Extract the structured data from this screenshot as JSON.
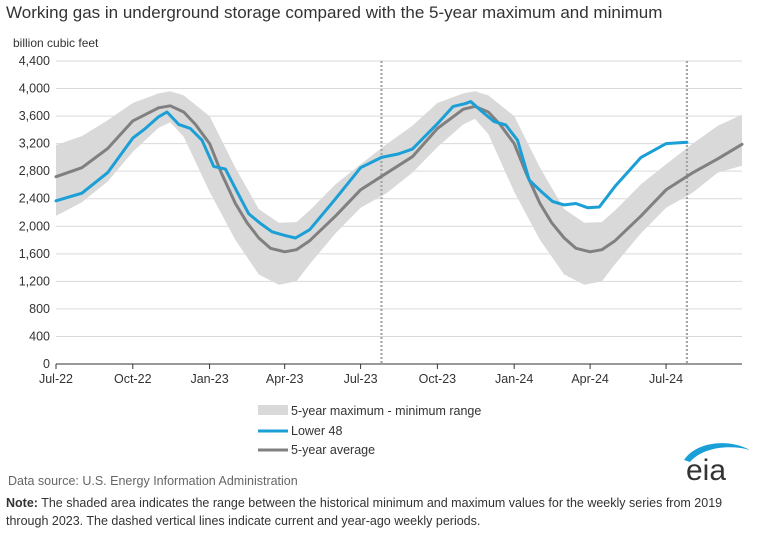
{
  "chart_data": {
    "type": "line",
    "title": "Working gas in underground  storage compared with the 5-year maximum and minimum",
    "ylabel": "billion cubic feet",
    "xlabel": "",
    "ylim": [
      0,
      4400
    ],
    "yticks": [
      0,
      400,
      800,
      1200,
      1600,
      2000,
      2400,
      2800,
      3200,
      3600,
      4000,
      4400
    ],
    "ytick_labels": [
      "0",
      "400",
      "800",
      "1,200",
      "1,600",
      "2,000",
      "2,400",
      "2,800",
      "3,200",
      "3,600",
      "4,000",
      "4,400"
    ],
    "xlim": [
      "2022-07-01",
      "2024-09-30"
    ],
    "xticks": [
      "2022-07-01",
      "2022-10-01",
      "2023-01-01",
      "2023-04-01",
      "2023-07-01",
      "2023-10-01",
      "2024-01-01",
      "2024-04-01",
      "2024-07-01"
    ],
    "xtick_labels": [
      "Jul-22",
      "Oct-22",
      "Jan-23",
      "Apr-23",
      "Jul-23",
      "Oct-23",
      "Jan-24",
      "Apr-24",
      "Jul-24"
    ],
    "grid": "horizontal",
    "legend_position": "bottom-center",
    "current_week_lines": [
      "2023-07-26",
      "2024-07-26"
    ],
    "series": [
      {
        "name": "5-year maximum - minimum range",
        "type": "band",
        "color": "#d9d9d9",
        "x": [
          "2022-07-01",
          "2022-08-01",
          "2022-09-01",
          "2022-10-01",
          "2022-11-01",
          "2022-11-15",
          "2022-12-01",
          "2023-01-01",
          "2023-02-01",
          "2023-03-01",
          "2023-03-25",
          "2023-04-15",
          "2023-05-01",
          "2023-06-01",
          "2023-07-01",
          "2023-08-01",
          "2023-09-01",
          "2023-10-01",
          "2023-11-01",
          "2023-11-15",
          "2023-12-01",
          "2024-01-01",
          "2024-02-01",
          "2024-03-01",
          "2024-03-25",
          "2024-04-15",
          "2024-05-01",
          "2024-06-01",
          "2024-07-01",
          "2024-08-01",
          "2024-09-01",
          "2024-09-30"
        ],
        "upper": [
          3180,
          3310,
          3540,
          3790,
          3930,
          3960,
          3900,
          3600,
          2850,
          2250,
          2050,
          2060,
          2230,
          2610,
          2900,
          3190,
          3460,
          3790,
          3930,
          3960,
          3900,
          3600,
          2850,
          2250,
          2050,
          2060,
          2230,
          2610,
          2900,
          3190,
          3460,
          3620
        ],
        "lower": [
          2150,
          2350,
          2650,
          3080,
          3430,
          3510,
          3300,
          2500,
          1800,
          1300,
          1150,
          1200,
          1450,
          1900,
          2270,
          2480,
          2780,
          3150,
          3480,
          3560,
          3340,
          2500,
          1800,
          1300,
          1150,
          1200,
          1450,
          1900,
          2270,
          2480,
          2780,
          2880
        ]
      },
      {
        "name": "Lower 48",
        "color": "#1a9fd6",
        "x": [
          "2022-07-01",
          "2022-08-01",
          "2022-09-01",
          "2022-10-01",
          "2022-10-15",
          "2022-11-01",
          "2022-11-11",
          "2022-11-25",
          "2022-12-09",
          "2022-12-23",
          "2023-01-06",
          "2023-01-20",
          "2023-02-03",
          "2023-02-17",
          "2023-03-03",
          "2023-03-17",
          "2023-03-31",
          "2023-04-14",
          "2023-05-01",
          "2023-06-01",
          "2023-07-01",
          "2023-07-26",
          "2023-08-15",
          "2023-09-01",
          "2023-10-01",
          "2023-10-20",
          "2023-11-03",
          "2023-11-10",
          "2023-11-24",
          "2023-12-08",
          "2023-12-22",
          "2024-01-05",
          "2024-01-19",
          "2024-02-02",
          "2024-02-16",
          "2024-03-01",
          "2024-03-15",
          "2024-03-29",
          "2024-04-12",
          "2024-05-01",
          "2024-06-01",
          "2024-07-01",
          "2024-07-26"
        ],
        "values": [
          2370,
          2480,
          2780,
          3280,
          3410,
          3590,
          3660,
          3480,
          3420,
          3250,
          2870,
          2830,
          2500,
          2180,
          2040,
          1920,
          1870,
          1830,
          1950,
          2400,
          2850,
          3000,
          3050,
          3120,
          3490,
          3740,
          3780,
          3810,
          3660,
          3520,
          3470,
          3250,
          2670,
          2510,
          2360,
          2310,
          2330,
          2270,
          2280,
          2580,
          3000,
          3200,
          3220
        ]
      },
      {
        "name": "5-year average",
        "color": "#808080",
        "x": [
          "2022-07-01",
          "2022-08-01",
          "2022-09-01",
          "2022-10-01",
          "2022-11-01",
          "2022-11-15",
          "2022-12-01",
          "2022-12-15",
          "2023-01-01",
          "2023-01-15",
          "2023-02-01",
          "2023-02-15",
          "2023-03-01",
          "2023-03-15",
          "2023-04-01",
          "2023-04-15",
          "2023-05-01",
          "2023-06-01",
          "2023-07-01",
          "2023-08-01",
          "2023-09-01",
          "2023-10-01",
          "2023-11-01",
          "2023-11-15",
          "2023-12-01",
          "2023-12-15",
          "2024-01-01",
          "2024-01-15",
          "2024-02-01",
          "2024-02-15",
          "2024-03-01",
          "2024-03-15",
          "2024-04-01",
          "2024-04-15",
          "2024-05-01",
          "2024-06-01",
          "2024-07-01",
          "2024-08-01",
          "2024-09-01",
          "2024-09-30"
        ],
        "values": [
          2720,
          2850,
          3130,
          3530,
          3720,
          3750,
          3660,
          3480,
          3200,
          2780,
          2330,
          2050,
          1830,
          1680,
          1630,
          1660,
          1790,
          2150,
          2530,
          2770,
          3010,
          3420,
          3700,
          3740,
          3660,
          3480,
          3200,
          2780,
          2330,
          2050,
          1830,
          1680,
          1630,
          1660,
          1790,
          2150,
          2530,
          2770,
          2980,
          3190
        ]
      }
    ]
  },
  "source_text": "Data source:  U.S. Energy Information Administration",
  "note_label": "Note:",
  "note_text": " The shaded area indicates the range between the historical minimum and maximum values for the weekly series from 2019 through 2023. The dashed vertical lines indicate current and year-ago weekly periods.",
  "logo_text": "eia",
  "colors": {
    "logo_arc": "#1a9fd6",
    "text": "#333333",
    "source": "#666666"
  }
}
